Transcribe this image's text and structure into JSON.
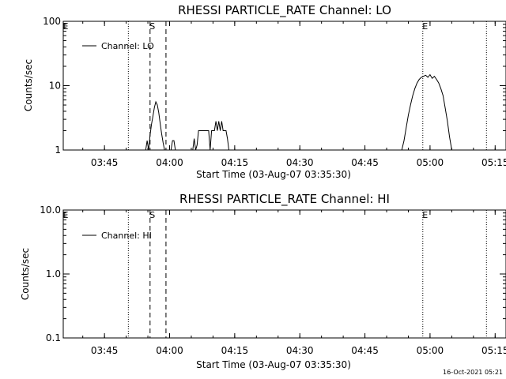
{
  "chart_data": [
    {
      "type": "line",
      "title": "RHESSI PARTICLE_RATE Channel: LO",
      "xlabel": "Start Time (03-Aug-07 03:35:30)",
      "ylabel": "Counts/sec",
      "yscale": "log",
      "ylim": [
        1,
        100
      ],
      "xlim": [
        "03:35:30",
        "05:17:30"
      ],
      "x_ticks": [
        "03:45",
        "04:00",
        "04:15",
        "04:30",
        "04:45",
        "05:00",
        "05:15"
      ],
      "y_ticks": [
        "1",
        "10",
        "100"
      ],
      "legend": "Channel: LO",
      "legend_position": "top-left",
      "grid": false,
      "markers": [
        {
          "label": "E",
          "time": "03:35:30",
          "style": "none"
        },
        {
          "label": "",
          "time": "03:50:30",
          "style": "dotted"
        },
        {
          "label": "S",
          "time": "03:55:30",
          "style": "dashed"
        },
        {
          "label": "",
          "time": "03:59:10",
          "style": "dashed"
        },
        {
          "label": "E",
          "time": "04:58:20",
          "style": "dotted"
        },
        {
          "label": "",
          "time": "05:13:00",
          "style": "dotted"
        }
      ],
      "series": [
        {
          "name": "Channel: LO",
          "segments": [
            {
              "x": [
                "03:54:30",
                "03:54:50",
                "03:55:10",
                "03:55:30",
                "03:55:50",
                "03:56:10",
                "03:56:30",
                "03:56:50",
                "03:57:10",
                "03:57:30",
                "03:57:50",
                "03:58:10",
                "03:58:30",
                "03:58:50"
              ],
              "y": [
                1.0,
                1.4,
                1.0,
                1.7,
                2.5,
                3.4,
                4.6,
                5.6,
                5.0,
                3.8,
                2.6,
                1.8,
                1.3,
                1.0
              ]
            },
            {
              "x": [
                "04:00:20",
                "04:00:40",
                "04:01:00",
                "04:01:20"
              ],
              "y": [
                1.0,
                1.4,
                1.4,
                1.0
              ]
            },
            {
              "x": [
                "04:05:20",
                "04:05:40",
                "04:06:00",
                "04:06:20",
                "04:06:40",
                "04:07:00",
                "04:08:00",
                "04:09:00",
                "04:09:20",
                "04:09:40",
                "04:10:00",
                "04:10:20",
                "04:10:40",
                "04:11:00",
                "04:11:20",
                "04:11:40",
                "04:12:00",
                "04:12:20",
                "04:12:40",
                "04:13:00",
                "04:13:20",
                "04:13:40"
              ],
              "y": [
                1.0,
                1.5,
                1.0,
                1.2,
                2.0,
                2.0,
                2.0,
                2.0,
                1.0,
                2.0,
                2.0,
                2.0,
                2.8,
                2.0,
                2.8,
                2.0,
                2.8,
                2.0,
                2.0,
                2.0,
                1.5,
                1.0
              ]
            },
            {
              "x": [
                "04:53:30",
                "04:54:00",
                "04:54:30",
                "04:55:00",
                "04:55:30",
                "04:56:00",
                "04:56:30",
                "04:57:00",
                "04:57:30",
                "04:58:00",
                "04:58:30",
                "04:59:00",
                "04:59:30",
                "05:00:00",
                "05:00:30",
                "05:01:00",
                "05:01:30",
                "05:02:00",
                "05:02:30",
                "05:03:00",
                "05:03:30",
                "05:04:00",
                "05:04:30",
                "05:05:00"
              ],
              "y": [
                1.0,
                1.4,
                2.2,
                3.5,
                5.0,
                7.0,
                9.0,
                11.0,
                12.5,
                13.5,
                14.0,
                14.5,
                13.5,
                14.8,
                13.0,
                14.0,
                12.5,
                11.0,
                9.0,
                7.0,
                4.5,
                2.8,
                1.6,
                1.0
              ]
            }
          ]
        }
      ]
    },
    {
      "type": "line",
      "title": "RHESSI PARTICLE_RATE Channel: HI",
      "xlabel": "Start Time (03-Aug-07 03:35:30)",
      "ylabel": "Counts/sec",
      "yscale": "log",
      "ylim": [
        0.1,
        10
      ],
      "xlim": [
        "03:35:30",
        "05:17:30"
      ],
      "x_ticks": [
        "03:45",
        "04:00",
        "04:15",
        "04:30",
        "04:45",
        "05:00",
        "05:15"
      ],
      "y_ticks": [
        "0.1",
        "1.0",
        "10.0"
      ],
      "legend": "Channel: HI",
      "legend_position": "top-left",
      "grid": false,
      "markers": [
        {
          "label": "E",
          "time": "03:35:30",
          "style": "none"
        },
        {
          "label": "",
          "time": "03:50:30",
          "style": "dotted"
        },
        {
          "label": "S",
          "time": "03:55:30",
          "style": "dashed"
        },
        {
          "label": "",
          "time": "03:59:10",
          "style": "dashed"
        },
        {
          "label": "E",
          "time": "04:58:20",
          "style": "dotted"
        },
        {
          "label": "",
          "time": "05:13:00",
          "style": "dotted"
        }
      ],
      "series": [
        {
          "name": "Channel: HI",
          "segments": []
        }
      ]
    }
  ],
  "footer": {
    "timestamp": "16-Oct-2021 05:21"
  }
}
